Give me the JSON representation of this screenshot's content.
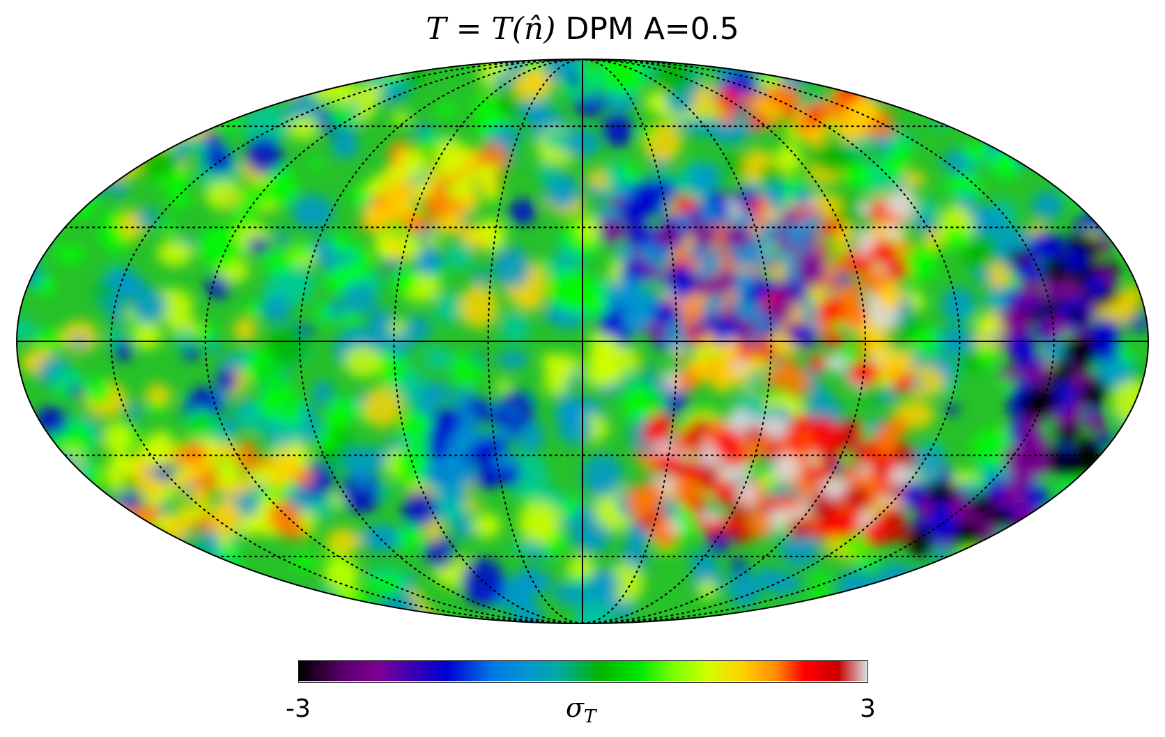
{
  "title": {
    "math": "T = T(n̂)",
    "rest": "DPM A=0.5"
  },
  "map": {
    "projection": "mollweide",
    "graticule": "dotted",
    "central_axes": "solid",
    "colormap": [
      "#000000",
      "#7d0096",
      "#0000d2",
      "#0096d2",
      "#00c8a0",
      "#00b400",
      "#00ff00",
      "#d2ff00",
      "#ffd200",
      "#ff7800",
      "#ff0000",
      "#c80000",
      "#dcdcdc"
    ]
  },
  "colorbar": {
    "min_label": "-3",
    "max_label": "3",
    "label": "σ",
    "label_sub": "T",
    "range": [
      -3,
      3
    ]
  }
}
